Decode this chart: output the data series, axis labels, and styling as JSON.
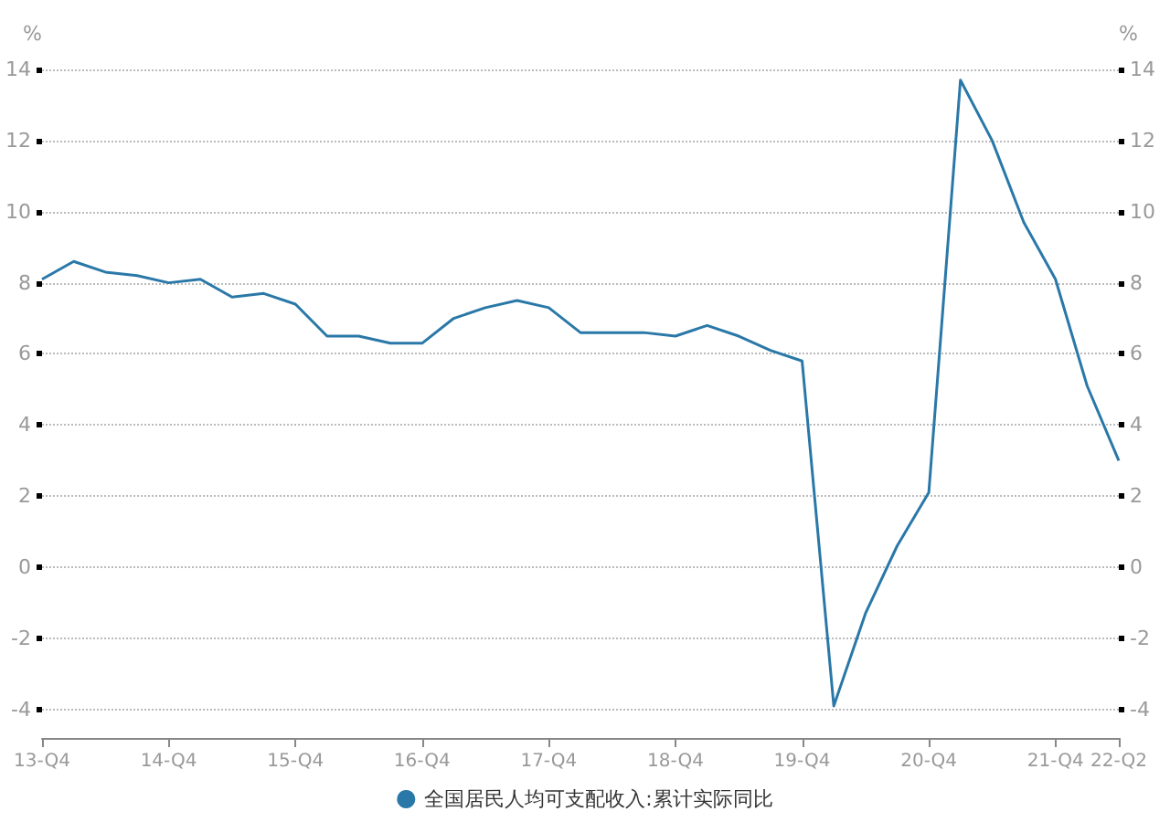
{
  "chart_data": {
    "type": "line",
    "ylabel": "%",
    "y2label": "%",
    "categories": [
      "13-Q4",
      null,
      null,
      null,
      "14-Q4",
      null,
      null,
      null,
      "15-Q4",
      null,
      null,
      null,
      "16-Q4",
      null,
      null,
      null,
      "17-Q4",
      null,
      null,
      null,
      "18-Q4",
      null,
      null,
      null,
      "19-Q4",
      null,
      null,
      null,
      "20-Q4",
      null,
      null,
      null,
      "21-Q4",
      null,
      "22-Q2"
    ],
    "series": [
      {
        "name": "全国居民人均可支配收入:累计实际同比",
        "color": "#2a78a8",
        "values": [
          8.1,
          8.6,
          8.3,
          8.2,
          8.0,
          8.1,
          7.6,
          7.7,
          7.4,
          6.5,
          6.5,
          6.3,
          6.3,
          7.0,
          7.3,
          7.5,
          7.3,
          6.6,
          6.6,
          6.6,
          6.5,
          6.8,
          6.5,
          6.1,
          5.8,
          -3.9,
          -1.3,
          0.6,
          2.1,
          13.7,
          12.0,
          9.7,
          8.1,
          5.1,
          3.0
        ]
      }
    ],
    "ylim": [
      -4.8,
      14
    ],
    "yticks": [
      -4,
      -2,
      0,
      2,
      4,
      6,
      8,
      10,
      12,
      14
    ],
    "y2lim": [
      -4.8,
      14
    ],
    "y2ticks": [
      -4,
      -2,
      0,
      2,
      4,
      6,
      8,
      10,
      12,
      14
    ],
    "grid": "y",
    "legend": "bottom",
    "marker": "none",
    "line_style": "solid"
  }
}
